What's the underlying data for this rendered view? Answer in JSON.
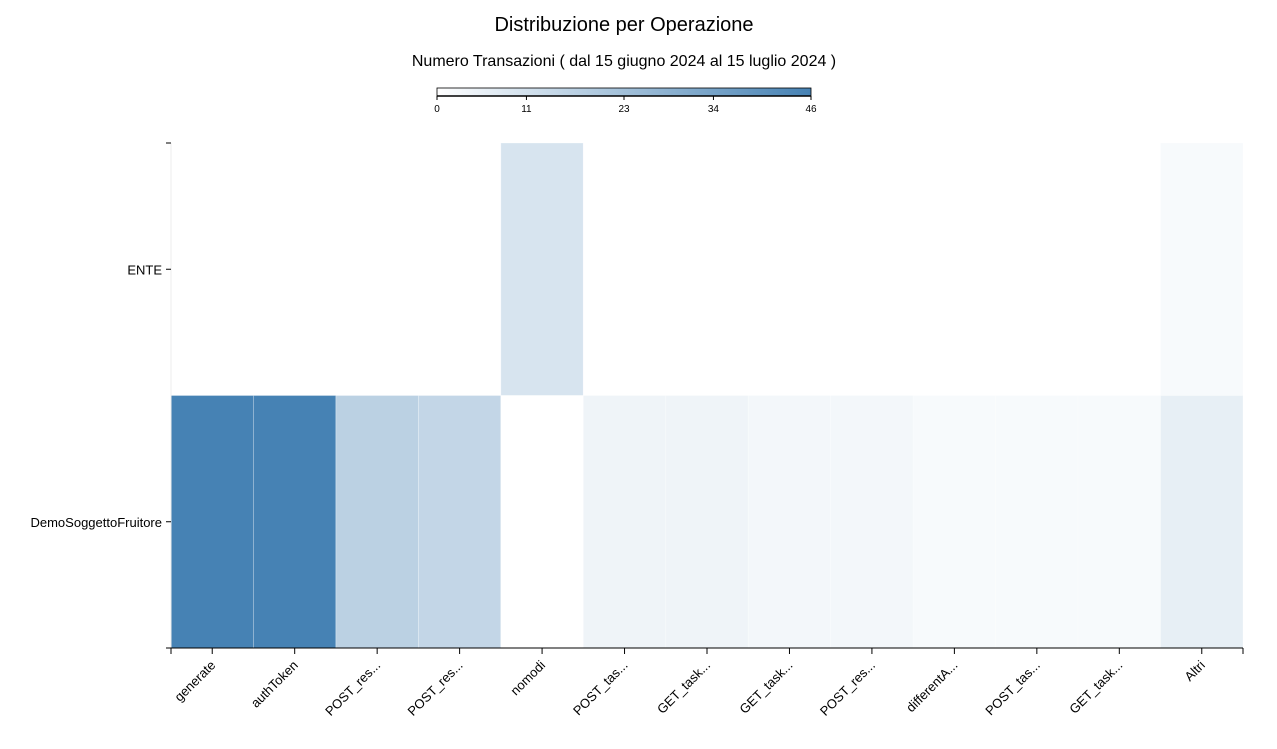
{
  "chart_data": {
    "type": "heatmap",
    "title": "Distribuzione per Operazione",
    "subtitle": "Numero Transazioni ( dal 15 giugno 2024 al 15 luglio 2024 )",
    "x_categories": [
      "generate",
      "authToken",
      "POST_res...",
      "POST_res...",
      "nomodi",
      "POST_tas...",
      "GET_task...",
      "GET_task...",
      "POST_res...",
      "differentA...",
      "POST_tas...",
      "GET_task...",
      "Altri"
    ],
    "y_categories": [
      "ENTE",
      "DemoSoggettoFruitore"
    ],
    "values": [
      [
        0,
        0,
        0,
        0,
        10,
        0,
        0,
        0,
        0,
        0,
        0,
        0,
        2
      ],
      [
        46,
        46,
        17,
        15,
        0,
        4,
        4,
        3,
        3,
        2,
        2,
        2,
        6
      ]
    ],
    "colorscale": {
      "min": 0,
      "max": 46,
      "min_color": "#ffffff",
      "max_color": "#4682b4",
      "ticks": [
        "0",
        "11",
        "23",
        "34",
        "46"
      ]
    },
    "grid": false,
    "legend": "top-center"
  }
}
